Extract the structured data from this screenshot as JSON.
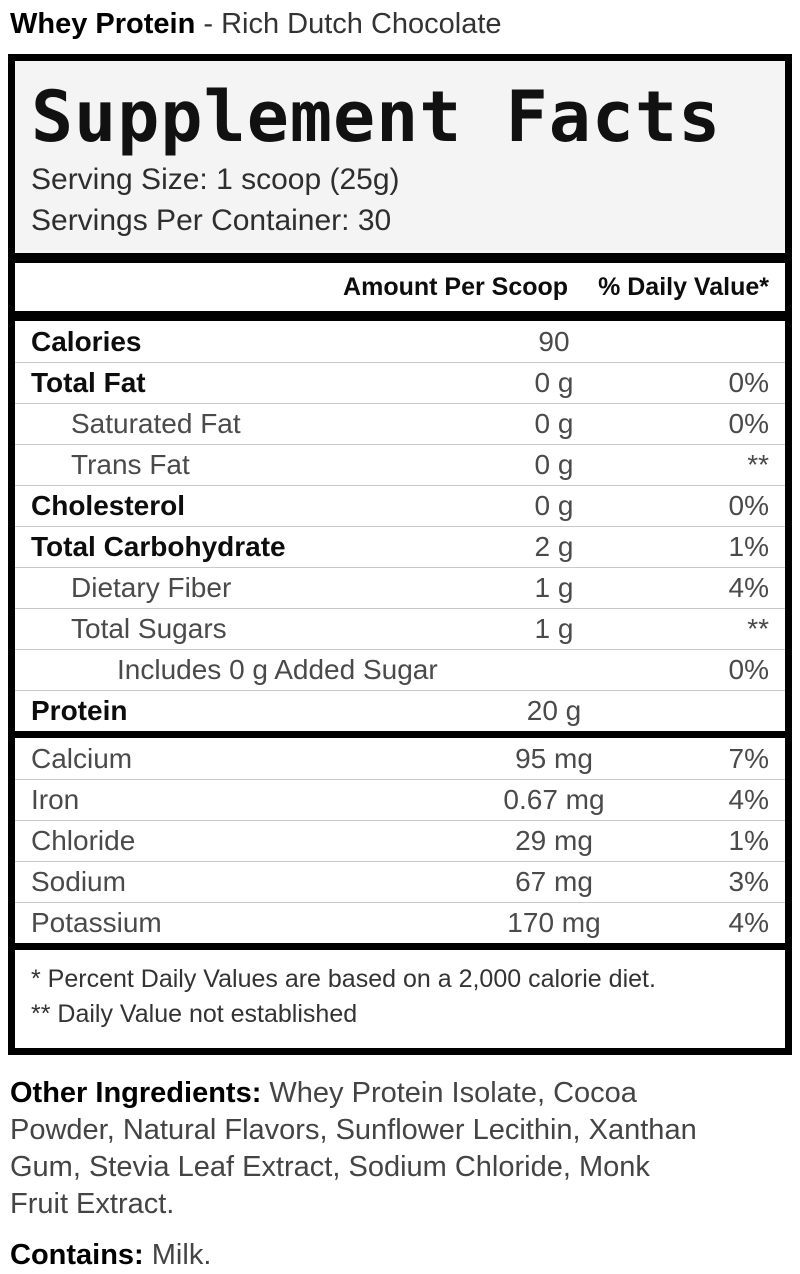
{
  "product": {
    "name": "Whey Protein",
    "flavor_suffix": " - Rich Dutch Chocolate"
  },
  "panel": {
    "title": "Supplement Facts",
    "serving_size": "Serving Size: 1 scoop (25g)",
    "servings_per_container": "Servings Per Container: 30",
    "columns": {
      "amount": "Amount Per Scoop",
      "daily_value": "% Daily Value*"
    },
    "rows": [
      {
        "label": "Calories",
        "amount": "90",
        "dv": ""
      },
      {
        "label": "Total Fat",
        "amount": "0 g",
        "dv": "0%"
      },
      {
        "label": "Saturated Fat",
        "amount": "0 g",
        "dv": "0%"
      },
      {
        "label": "Trans Fat",
        "amount": "0 g",
        "dv": "**"
      },
      {
        "label": "Cholesterol",
        "amount": "0 g",
        "dv": "0%"
      },
      {
        "label": "Total Carbohydrate",
        "amount": "2 g",
        "dv": "1%"
      },
      {
        "label": "Dietary Fiber",
        "amount": "1 g",
        "dv": "4%"
      },
      {
        "label": "Total Sugars",
        "amount": "1 g",
        "dv": "**"
      },
      {
        "label": "Includes 0 g Added Sugar",
        "amount": "",
        "dv": "0%"
      },
      {
        "label": "Protein",
        "amount": "20 g",
        "dv": ""
      }
    ],
    "minerals": [
      {
        "label": "Calcium",
        "amount": "95 mg",
        "dv": "7%"
      },
      {
        "label": "Iron",
        "amount": "0.67 mg",
        "dv": "4%"
      },
      {
        "label": "Chloride",
        "amount": "29 mg",
        "dv": "1%"
      },
      {
        "label": "Sodium",
        "amount": "67 mg",
        "dv": "3%"
      },
      {
        "label": "Potassium",
        "amount": "170 mg",
        "dv": "4%"
      }
    ],
    "footnotes": [
      "* Percent Daily Values are based on a 2,000 calorie diet.",
      "** Daily Value not established"
    ]
  },
  "other_ingredients": {
    "label": "Other Ingredients:",
    "text": " Whey Protein Isolate, Cocoa Powder, Natural Flavors, Sunflower Lecithin, Xanthan Gum, Stevia Leaf Extract, Sodium Chloride, Monk Fruit Extract."
  },
  "contains": {
    "label": "Contains:",
    "text": " Milk."
  },
  "colors": {
    "border": "#000000",
    "header_bg": "#f4f4f4",
    "separator": "#c9c9c9"
  }
}
